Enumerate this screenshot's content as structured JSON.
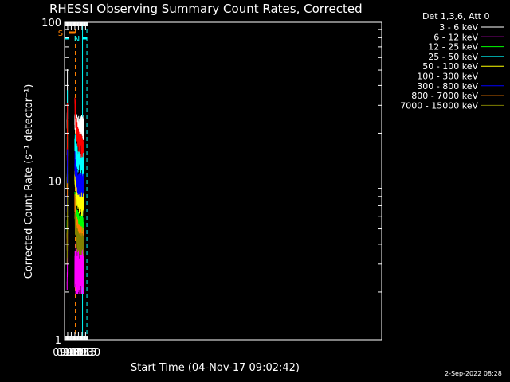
{
  "chart_data": {
    "type": "line",
    "title": "RHESSI Observing Summary Count Rates, Corrected",
    "xlabel": "Start Time (04-Nov-17 09:02:42)",
    "ylabel": "Corrected Count Rate (s⁻¹ detector⁻¹)",
    "yscale": "log",
    "ylim": [
      1,
      100
    ],
    "ytick_labels": [
      "1",
      "10",
      "100"
    ],
    "xtick_labels": [
      "09:15",
      "09:30",
      "09:45",
      "10:00",
      "10:15",
      "10:30"
    ],
    "xlim_minutes": [
      9.03,
      31.2
    ],
    "grid": false,
    "legend_placement": "top-right",
    "legend_title": "Det 1,3,6, Att 0",
    "markers": {
      "saa_label": "S",
      "night_label": "N",
      "saa_color": "#ff8000",
      "night_color": "#00ffff",
      "saa_bar_minutes": [
        9.35,
        9.783
      ],
      "night_bars_minutes": [
        [
          9.036,
          9.337
        ],
        [
          10.287,
          10.593
        ]
      ],
      "saa_dashed_minutes": [
        9.337,
        9.783
      ],
      "night_solid_minutes": [
        9.337,
        10.287
      ],
      "night_dashed_minutes": [
        10.593
      ]
    },
    "series": [
      {
        "name": "3 - 6 keV",
        "color": "#ffffff",
        "level1": 23,
        "level2_start": 24,
        "level2": 22
      },
      {
        "name": "6 - 12 keV",
        "color": "#ff00ff",
        "level1": 2.5,
        "level2_start": 3.2,
        "level2": 2.6
      },
      {
        "name": "12 - 25 keV",
        "color": "#00ff00",
        "level1": 5.0,
        "level2_start": 8.0,
        "level2": 5.2
      },
      {
        "name": "25 - 50 keV",
        "color": "#00ffff",
        "level1": 17,
        "level2_start": 19,
        "level2": 13
      },
      {
        "name": "50 - 100 keV",
        "color": "#ffff00",
        "level1": 11,
        "level2_start": 12,
        "level2": 7.3
      },
      {
        "name": "100 - 300 keV",
        "color": "#ff0000",
        "level1": 14,
        "level2_start": 32,
        "level2": 17
      },
      {
        "name": "300 - 800 keV",
        "color": "#0000ff",
        "level1": 7.2,
        "level2_start": 14,
        "level2": 9.5
      },
      {
        "name": "800 - 7000 keV",
        "color": "#ff8000",
        "level1": 4.4,
        "level2_start": 7.5,
        "level2": 4.4
      },
      {
        "name": "7000 - 15000 keV",
        "color": "#808000",
        "level1": 3.6,
        "level2_start": 6.0,
        "level2": 4.0
      }
    ],
    "data_intervals_minutes": [
      [
        9.21,
        9.233
      ],
      [
        9.75,
        10.38
      ]
    ],
    "footer_date": "2-Sep-2022 08:28"
  }
}
